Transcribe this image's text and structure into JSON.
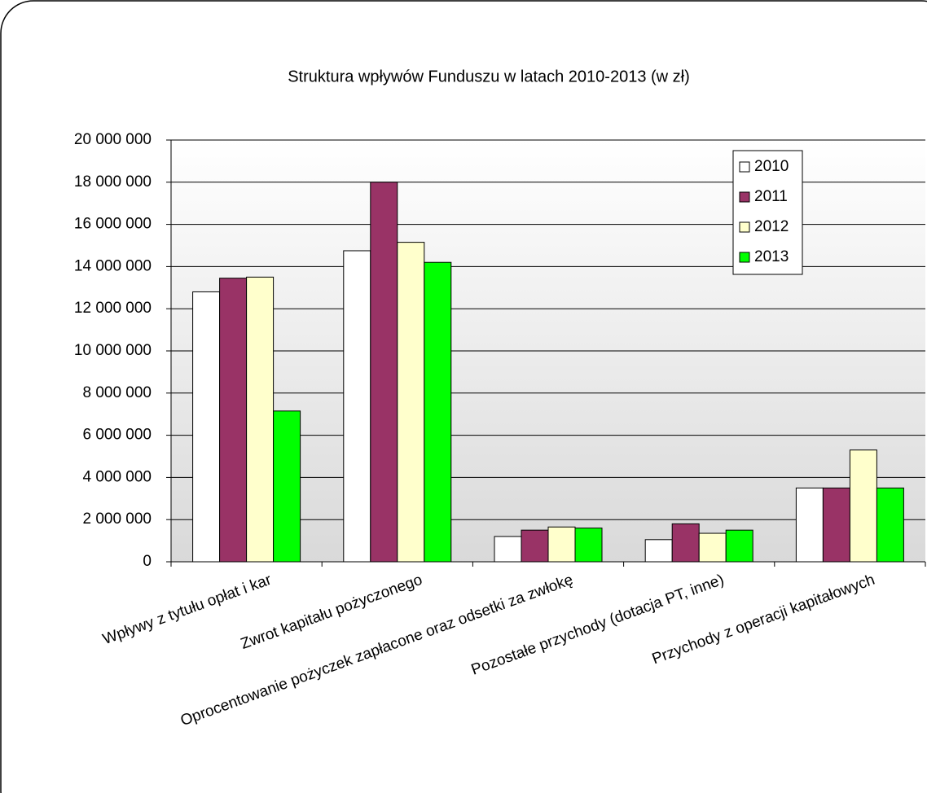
{
  "chart_data": {
    "type": "bar",
    "title": "Struktura wpływów Funduszu w latach 2010-2013 (w zł)",
    "categories": [
      "Wpływy z tytułu opłat i kar",
      "Zwrot kapitału pożyczonego",
      "Oprocentowanie pożyczek  zapłacone oraz odsetki za zwłokę",
      "Pozostałe przychody  (dotacja PT, inne)",
      "Przychody z operacji kapitałowych"
    ],
    "series": [
      {
        "name": "2010",
        "color": "#ffffff",
        "values": [
          12800000,
          14750000,
          1200000,
          1050000,
          3500000
        ]
      },
      {
        "name": "2011",
        "color": "#993366",
        "values": [
          13450000,
          18000000,
          1500000,
          1800000,
          3500000
        ]
      },
      {
        "name": "2012",
        "color": "#ffffcc",
        "values": [
          13500000,
          15150000,
          1650000,
          1350000,
          5300000
        ]
      },
      {
        "name": "2013",
        "color": "#00ff00",
        "values": [
          7150000,
          14200000,
          1600000,
          1500000,
          3500000
        ]
      }
    ],
    "ylim": [
      0,
      20000000
    ],
    "yticks": [
      0,
      {
        "value": 2000000,
        "label": "2 000 000"
      },
      {
        "value": 4000000,
        "label": "4 000 000"
      },
      {
        "value": 6000000,
        "label": "6 000 000"
      },
      {
        "value": 8000000,
        "label": "8 000 000"
      },
      {
        "value": 10000000,
        "label": "10 000 000"
      },
      {
        "value": 12000000,
        "label": "12 000 000"
      },
      {
        "value": 14000000,
        "label": "14 000 000"
      },
      {
        "value": 16000000,
        "label": "16 000 000"
      },
      {
        "value": 18000000,
        "label": "18 000 000"
      },
      {
        "value": 20000000,
        "label": "20 000 000"
      }
    ],
    "grid": true,
    "legend": "top-right"
  }
}
